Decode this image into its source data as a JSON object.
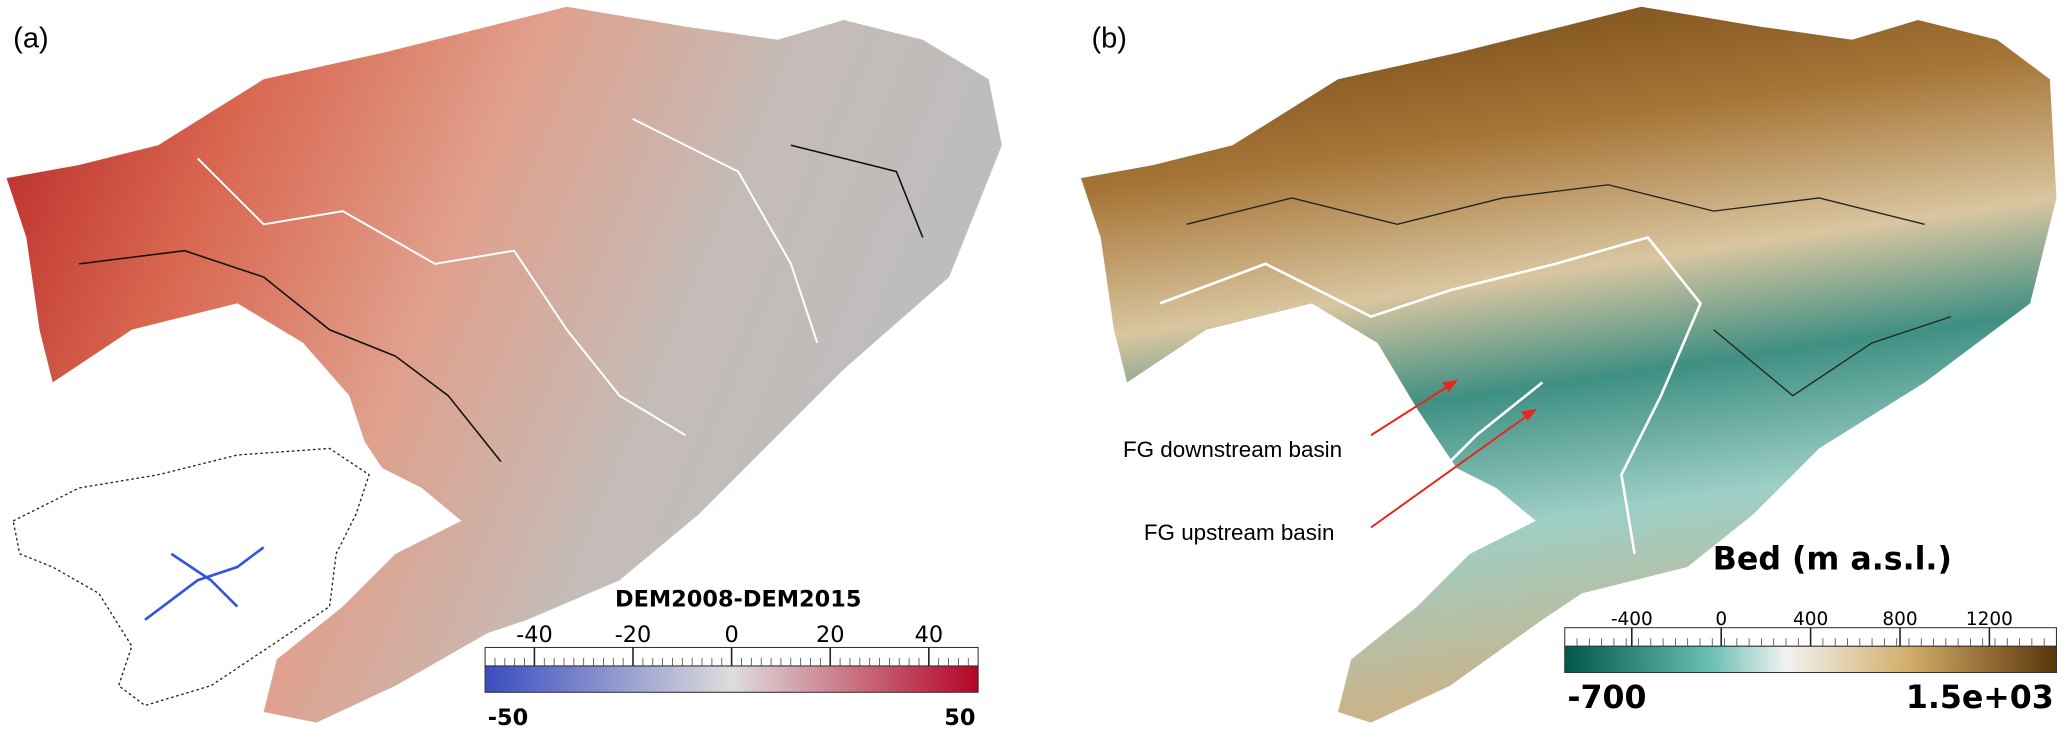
{
  "panels": [
    {
      "label": "(a)",
      "colorbar": {
        "title": "DEM2008-DEM2015",
        "range": [
          -50,
          50
        ],
        "ticks": [
          -40,
          -20,
          0,
          20,
          40
        ]
      }
    },
    {
      "label": "(b)",
      "colorbar": {
        "title": "Bed (m a.s.l.)",
        "range": [
          -700,
          {
            "value": 1500,
            "label": "1.5e+03"
          }
        ],
        "ticks": [
          -400,
          0,
          400,
          800,
          1200
        ]
      }
    }
  ],
  "annotations": [
    {
      "text": "FG downstream basin"
    },
    {
      "text": "FG upstream basin"
    }
  ]
}
